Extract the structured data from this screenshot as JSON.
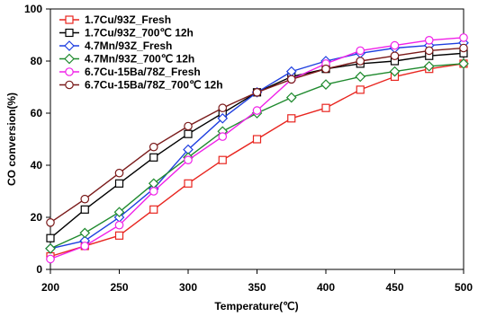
{
  "chart_data": {
    "type": "line",
    "xlabel": "Temperature(℃)",
    "ylabel": "CO conversion(%)",
    "xlim": [
      200,
      500
    ],
    "ylim": [
      0,
      100
    ],
    "xticks": [
      "200",
      "250",
      "300",
      "350",
      "400",
      "450",
      "500"
    ],
    "yticks": [
      "0",
      "20",
      "40",
      "60",
      "80",
      "100"
    ],
    "grid": false,
    "legend_position": "top-left",
    "x": [
      200,
      225,
      250,
      275,
      300,
      325,
      350,
      375,
      400,
      425,
      450,
      475,
      500
    ],
    "series": [
      {
        "name": "1.7Cu/93Z_Fresh",
        "color": "#e8251f",
        "marker": "square-open",
        "values": [
          5,
          9,
          13,
          23,
          33,
          42,
          50,
          58,
          62,
          69,
          74,
          77,
          79
        ]
      },
      {
        "name": "1.7Cu/93Z_700℃ 12h",
        "color": "#000000",
        "marker": "square-open",
        "values": [
          12,
          23,
          33,
          43,
          52,
          60,
          68,
          74,
          77,
          79,
          80,
          82,
          83
        ]
      },
      {
        "name": "4.7Mn/93Z_Fresh",
        "color": "#1f3fe0",
        "marker": "diamond-open",
        "values": [
          8,
          11,
          20,
          31,
          46,
          58,
          68,
          76,
          80,
          83,
          85,
          86,
          87
        ]
      },
      {
        "name": "4.7Mn/93Z_700℃ 12h",
        "color": "#1f8a2e",
        "marker": "diamond-open",
        "values": [
          8,
          14,
          22,
          33,
          43,
          53,
          60,
          66,
          71,
          74,
          76,
          78,
          79
        ]
      },
      {
        "name": "6.7Cu-15Ba/78Z_Fresh",
        "color": "#f020e8",
        "marker": "circle-open",
        "values": [
          4,
          9,
          17,
          30,
          42,
          51,
          61,
          73,
          79,
          84,
          86,
          88,
          89
        ]
      },
      {
        "name": "6.7Cu-15Ba/78Z_700℃ 12h",
        "color": "#7a1a1a",
        "marker": "circle-open",
        "values": [
          18,
          27,
          37,
          47,
          55,
          62,
          68,
          73,
          77,
          80,
          82,
          84,
          85
        ]
      }
    ]
  }
}
